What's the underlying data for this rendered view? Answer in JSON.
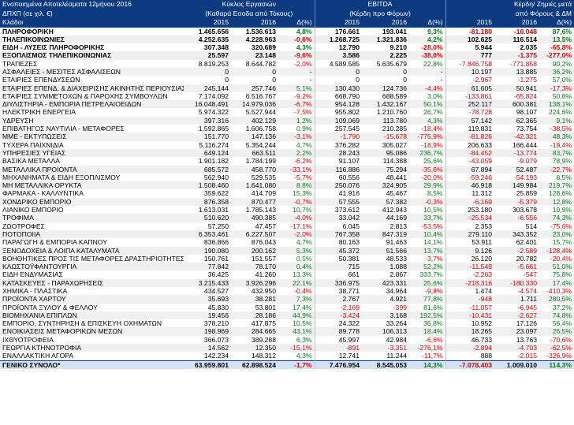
{
  "header": {
    "title": "Ενοποιημένα Αποτελέσματα 12μήνου 2016",
    "units": "ΔΠΧΠ (σε χιλ. €)",
    "sector_label": "Κλάδοι",
    "groups": [
      {
        "line1": "Κύκλος Εργασιών",
        "line2": "(Καθαρά Εσοδα από Τόκους)"
      },
      {
        "line1": "EBITDA",
        "line2": "(Κέρδη προ Φόρων)"
      },
      {
        "line1": "Κέρδη/ Ζημιές μετά",
        "line2": "από Φόρους & ΔΜ"
      }
    ],
    "col_2015": "2015",
    "col_2016": "2016",
    "col_delta": "Δ(%)"
  },
  "colors": {
    "header_bg": "#0b3a7e",
    "negative": "#e00000",
    "positive": "#0a7a1c",
    "total_bg": "#d4e3f5"
  },
  "rows": [
    {
      "name": "ΠΛΗΡΟΦΟΡΙΚΗ",
      "cells": [
        "1.465.656",
        "1.536.613",
        "4,8%",
        "176.661",
        "193.041",
        "9,3%",
        "-81.180",
        "-10.048",
        "87,6%"
      ],
      "style": "bold"
    },
    {
      "name": "ΤΗΛΕΠΙΚΟΙΝΩΝΙΕΣ",
      "cells": [
        "4.252.635",
        "4.228.963",
        "-0,6%",
        "1.268.725",
        "1.321.836",
        "4,2%",
        "102.625",
        "116.514",
        "13,5%"
      ],
      "style": "bold"
    },
    {
      "name": "ΕΙΔΗ - ΛΥΣΕΙΣ ΠΛΗΡΟΦΟΡΙΚΗΣ",
      "cells": [
        "307.348",
        "320.689",
        "4,3%",
        "12.790",
        "9.210",
        "-28,0%",
        "5.944",
        "2.035",
        "-65,8%"
      ],
      "style": "bold"
    },
    {
      "name": "ΕΞΟΠΛΙΣΜΟΣ ΤΗΛΕΠΙΚΟΙΝΩΝΙΑΣ",
      "cells": [
        "25.597",
        "23.148",
        "-9,6%",
        "3.586",
        "2.225",
        "-38,0%",
        "777",
        "-1.375",
        "-277,0%"
      ],
      "style": "bold"
    },
    {
      "name": "ΤΡΑΠΕΖΕΣ",
      "cells": [
        "8.819.253",
        "8.644.782",
        "-2,0%",
        "4.589.585",
        "5.635.679",
        "22,8%",
        "-7.846.758",
        "-771.858",
        "90,2%"
      ],
      "style": ""
    },
    {
      "name": "ΑΣΦΑΛΕΙΕΣ - ΜΕΣΙΤΕΣ ΑΣΦΑΛΙΣΕΩΝ",
      "cells": [
        "0",
        "0",
        "-",
        "0",
        "0",
        "-",
        "10.197",
        "13.885",
        "36,2%"
      ],
      "style": ""
    },
    {
      "name": "ΕΤΑΙΡΙΕΣ ΕΠΕΝΔΥΣΕΩΝ",
      "cells": [
        "0",
        "0",
        "-",
        "0",
        "0",
        "-",
        "-2.967",
        "-1.275",
        "57,0%"
      ],
      "style": ""
    },
    {
      "name": "ΕΤΑΙΡΙΕΣ ΕΠΕΝΔ. & ΔΙΑΧΕΙΡΙΣΗΣ ΑΚΙΝΗΤΗΣ ΠΕΡΙΟΥΣΙΑΣ",
      "cells": [
        "245.144",
        "257.746",
        "5,1%",
        "130.430",
        "124.736",
        "-4,4%",
        "61.605",
        "50.941",
        "-17,3%"
      ],
      "style": ""
    },
    {
      "name": "ΕΤΑΙΡΙΕΣ ΣΥΜΜΕΤΟΧΩΝ & ΠΑΡΟΧΗΣ ΣΥΜΒΟΥΛΩΝ",
      "cells": [
        "7.174.092",
        "6.516.767",
        "-9,2%",
        "668.790",
        "688.589",
        "3,0%",
        "-133.861",
        "-65.824",
        "50,8%"
      ],
      "style": ""
    },
    {
      "name": "ΔΙΥΛΙΣΤΗΡΙΑ - ΕΜΠΟΡΙΑ ΠΕΤΡΕΛΑΙΟΕΙΔΩΝ",
      "cells": [
        "16.048.491",
        "14.979.036",
        "-6,7%",
        "954.128",
        "1.432.167",
        "50,1%",
        "252.117",
        "600.381",
        "138,1%"
      ],
      "style": ""
    },
    {
      "name": "ΗΛΕΚΤΡΙΚΗ ΕΝΕΡΓΕΙΑ",
      "cells": [
        "5.974.322",
        "5.527.944",
        "-7,5%",
        "955.802",
        "1.210.760",
        "26,7%",
        "-78.728",
        "98.107",
        "224,6%"
      ],
      "style": ""
    },
    {
      "name": "ΥΔΡΕΥΣΗ",
      "cells": [
        "397.316",
        "402.129",
        "1,2%",
        "109.069",
        "113.780",
        "4,3%",
        "57.142",
        "62.365",
        "9,1%"
      ],
      "style": ""
    },
    {
      "name": "ΕΠΙΒΑΤΗΓΟΣ ΝΑΥΤΙΛΙΑ - ΜΕΤΑΦΟΡΕΣ",
      "cells": [
        "1.592.865",
        "1.606.758",
        "0,9%",
        "257.545",
        "210.285",
        "-18,4%",
        "119.831",
        "73.754",
        "-38,5%"
      ],
      "style": ""
    },
    {
      "name": "ΜΜΕ - ΕΚΤΥΠΩΣΕΙΣ",
      "cells": [
        "151.770",
        "147.136",
        "-3,1%",
        "-1.790",
        "-15.678",
        "-775,9%",
        "-81.826",
        "-42.321",
        "48,3%"
      ],
      "style": ""
    },
    {
      "name": "ΤΥΧΕΡΑ ΠΑΙΧΝΙΔΙΑ",
      "cells": [
        "5.116.274",
        "5.354.244",
        "4,7%",
        "376.282",
        "305.027",
        "-18,9%",
        "206.633",
        "166.444",
        "-19,4%"
      ],
      "style": ""
    },
    {
      "name": "ΥΠΗΡΕΣΙΕΣ ΥΓΕΙΑΣ",
      "cells": [
        "649.124",
        "663.511",
        "2,2%",
        "28.243",
        "95.086",
        "236,7%",
        "-84.452",
        "-13.774",
        "83,7%"
      ],
      "style": ""
    },
    {
      "name": "ΒΑΣΙΚΑ ΜΕΤΑΛΛΑ",
      "cells": [
        "1.901.182",
        "1.784.199",
        "-6,2%",
        "91.107",
        "114.388",
        "25,6%",
        "-43.059",
        "-9.079",
        "78,9%"
      ],
      "style": ""
    },
    {
      "name": "ΜΕΤΑΛΛΙΚΑ ΠΡΟΙΟΝΤΑ",
      "cells": [
        "685.572",
        "458.770",
        "-33,1%",
        "116.886",
        "75.294",
        "-35,6%",
        "67.894",
        "52.487",
        "-22,7%"
      ],
      "style": ""
    },
    {
      "name": "ΜΗΧΑΝΗΜΑΤΑ & ΕΙΔΗ ΕΞΟΠΛΙΣΜΟΥ",
      "cells": [
        "562.940",
        "529.535",
        "-5,7%",
        "60.556",
        "48.441",
        "-20,0%",
        "-59.246",
        "-54.193",
        "8,5%"
      ],
      "style": ""
    },
    {
      "name": "ΜΗ ΜΕΤΑΛΛΙΚΑ ΟΡΥΚΤΑ",
      "cells": [
        "1.508.460",
        "1.641.080",
        "8,8%",
        "250.076",
        "324.905",
        "29,9%",
        "46.918",
        "149.984",
        "219,7%"
      ],
      "style": ""
    },
    {
      "name": "ΦΑΡΜΑΚΑ - ΚΑΛΛΥΝΤΙΚΑ",
      "cells": [
        "359.622",
        "414.709",
        "15,3%",
        "41.916",
        "45.467",
        "8,5%",
        "11.312",
        "25.859",
        "128,6%"
      ],
      "style": ""
    },
    {
      "name": "ΧΟΝΔΡΙΚΟ ΕΜΠΟΡΙΟ",
      "cells": [
        "876.358",
        "870.477",
        "-0,7%",
        "57.555",
        "57.382",
        "-0,3%",
        "-6.169",
        "-5.379",
        "12,8%"
      ],
      "style": ""
    },
    {
      "name": "ΛΙΑΝΙΚΟ ΕΜΠΟΡΙΟ",
      "cells": [
        "1.613.031",
        "1.785.143",
        "10,7%",
        "373.612",
        "412.943",
        "10,5%",
        "253.180",
        "303.678",
        "19,9%"
      ],
      "style": ""
    },
    {
      "name": "ΤΡΟΦΙΜΑ",
      "cells": [
        "510.620",
        "490.385",
        "-4,0%",
        "33.042",
        "44.169",
        "33,7%",
        "-25.534",
        "-6.556",
        "74,3%"
      ],
      "style": ""
    },
    {
      "name": "ΖΩΟΤΡΟΦΕΣ",
      "cells": [
        "57.250",
        "47.457",
        "-17,1%",
        "6.045",
        "2.813",
        "-53,5%",
        "2.353",
        "514",
        "-75,6%"
      ],
      "style": ""
    },
    {
      "name": "ΠΟΤΟΠΟΙΙΑ",
      "cells": [
        "6.353.461",
        "6.227.507",
        "-2,0%",
        "767.358",
        "847.319",
        "10,4%",
        "279.110",
        "343.352",
        "23,0%"
      ],
      "style": ""
    },
    {
      "name": "ΠΑΡΑΓΩΓΗ & ΕΜΠΟΡΙΑ ΚΑΠΝΟΥ",
      "cells": [
        "836.866",
        "876.043",
        "4,7%",
        "80.163",
        "91.463",
        "14,1%",
        "53.911",
        "62.401",
        "15,7%"
      ],
      "style": ""
    },
    {
      "name": "ΞΕΝΟΔΟΧΕΙΑ & ΛΟΙΠΑ ΚΑΤΑΛΥΜΑΤΑ",
      "cells": [
        "190.080",
        "200.162",
        "5,3%",
        "45.372",
        "51.566",
        "13,7%",
        "9.126",
        "-2.589",
        "-128,4%"
      ],
      "style": ""
    },
    {
      "name": "ΒΟΗΘΗΤΙΚΕΣ ΠΡΟΣ ΤΙΣ ΜΕΤΑΦΟΡΕΣ ΔΡΑΣΤΗΡΙΟΤΗΤΕΣ",
      "cells": [
        "150.761",
        "151.557",
        "0,5%",
        "50.381",
        "48.533",
        "-3,7%",
        "26.120",
        "20.782",
        "-20,4%"
      ],
      "style": ""
    },
    {
      "name": "ΚΛΩΣΤΟΫΦΑΝΤΟΥΡΓΙΑ",
      "cells": [
        "77.842",
        "78.170",
        "0,4%",
        "715",
        "1.088",
        "52,2%",
        "-11.549",
        "-5.661",
        "51,0%"
      ],
      "style": ""
    },
    {
      "name": "ΕΙΔΗ ΕΝΔΥΜΑΣΙΑΣ",
      "cells": [
        "36.425",
        "41.260",
        "13,3%",
        "661",
        "2.867",
        "333,7%",
        "-2.263",
        "-547",
        "75,8%"
      ],
      "style": ""
    },
    {
      "name": "ΚΑΤΑΣΚΕΥΕΣ - ΠΑΡΑΧΩΡΗΣΕΙΣ",
      "cells": [
        "3.215.433",
        "3.926.296",
        "22,1%",
        "336.975",
        "423.331",
        "25,6%",
        "-218.316",
        "-180.330",
        "17,4%"
      ],
      "style": ""
    },
    {
      "name": "ΧΗΜΙΚΑ - ΠΛΑΣΤΙΚΑ",
      "cells": [
        "434.527",
        "432.950",
        "-0,4%",
        "38.771",
        "34.964",
        "-9,8%",
        "1.474",
        "-4.574",
        "-410,3%"
      ],
      "style": ""
    },
    {
      "name": "ΠΡΟΪΟΝΤΑ ΧΑΡΤΟΥ",
      "cells": [
        "35.693",
        "38.281",
        "7,3%",
        "2.767",
        "4.921",
        "77,8%",
        "-948",
        "1.711",
        "280,5%"
      ],
      "style": ""
    },
    {
      "name": "ΠΡΟΪΟΝΤΑ ΞΥΛΟΥ & ΦΕΛΛΟΥ",
      "cells": [
        "45.830",
        "53.801",
        "17,4%",
        "-2.169",
        "-399",
        "81,6%",
        "-11.057",
        "-6.945",
        "37,2%"
      ],
      "style": ""
    },
    {
      "name": "ΒΙΟΜΗΧΑΝΙΑ ΕΠΙΠΛΩΝ",
      "cells": [
        "19.456",
        "28.186",
        "44,9%",
        "-3.424",
        "3.168",
        "192,5%",
        "-10.431",
        "-2.627",
        "74,8%"
      ],
      "style": ""
    },
    {
      "name": "ΕΜΠΟΡΙΟ, ΣΥΝΤΗΡΗΣΗ & ΕΠΙΣΚΕΥΗ ΟΧΗΜΑΤΩΝ",
      "cells": [
        "378.210",
        "417.875",
        "10,5%",
        "24.322",
        "33.264",
        "36,8%",
        "10.952",
        "17.126",
        "56,4%"
      ],
      "style": ""
    },
    {
      "name": "ΕΝΟΙΚΙΑΣΕΙΣ ΜΕΤΑΦΟΡΙΚΩΝ ΜΕΣΩΝ",
      "cells": [
        "198.969",
        "284.665",
        "43,1%",
        "89.778",
        "106.313",
        "18,4%",
        "18.265",
        "23.097",
        "26,5%"
      ],
      "style": ""
    },
    {
      "name": "ΙΧΘΥΟΤΡΟΦΕΙΑ",
      "cells": [
        "366.073",
        "389.288",
        "6,3%",
        "45.997",
        "42.984",
        "-6,6%",
        "46.733",
        "13.763",
        "-70,6%"
      ],
      "style": ""
    },
    {
      "name": "ΓΕΩΡΓΙΑ ΚΤΗΝΟΤΡΟΦΙΑ",
      "cells": [
        "14.562",
        "12.350",
        "-15,1%",
        "-891",
        "-3.351",
        "-276,1%",
        "-2.894",
        "-4.703",
        "-62,5%"
      ],
      "style": ""
    },
    {
      "name": "ΕΝΑΛΛΑΚΤΙΚΗ ΑΓΟΡΑ",
      "cells": [
        "142.234",
        "148.312",
        "4,3%",
        "12.741",
        "11.244",
        "-11,7%",
        "888",
        "-2.015",
        "-326,9%"
      ],
      "style": ""
    }
  ],
  "total": {
    "name": "ΓΕΝΙΚΟ ΣΥΝΟΛΟ*",
    "cells": [
      "63.959.801",
      "62.898.524",
      "-1,7%",
      "7.476.954",
      "8.545.053",
      "14,3%",
      "-7.078.403",
      "1.009.010",
      "114,3%"
    ]
  }
}
